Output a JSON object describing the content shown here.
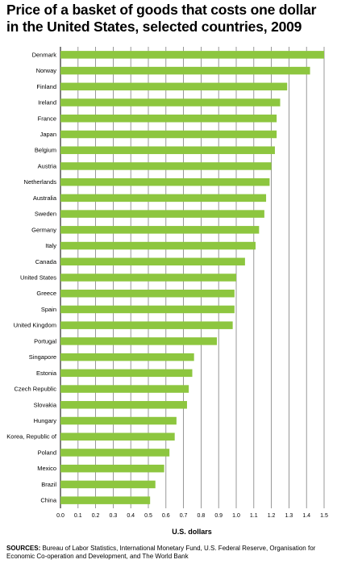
{
  "title": "Price of a basket of goods that costs one dollar in the United States, selected countries, 2009",
  "sources_label": "SOURCES:",
  "sources_text": "Bureau of Labor Statistics, International Monetary Fund, U.S. Federal Reserve, Organisation for Economic Co-operation and Development, and The World Bank",
  "colors": {
    "bar": "#8dc63f",
    "grid": "#7f7f7f",
    "axis": "#000000"
  },
  "chart_data": {
    "type": "bar",
    "orientation": "horizontal",
    "title": "Price of a basket of goods that costs one dollar in the United States, selected countries, 2009",
    "xlabel": "U.S. dollars",
    "ylabel": "",
    "xlim": [
      0,
      1.5
    ],
    "x_ticks": [
      "0.0",
      "0.1",
      "0.2",
      "0.3",
      "0.4",
      "0.5",
      "0.6",
      "0.7",
      "0.8",
      "0.9",
      "1.0",
      "1.1",
      "1.2",
      "1.3",
      "1.4",
      "1.5"
    ],
    "grid": "vertical",
    "categories": [
      "Denmark",
      "Norway",
      "Finland",
      "Ireland",
      "France",
      "Japan",
      "Belgium",
      "Austria",
      "Netherlands",
      "Australia",
      "Sweden",
      "Germany",
      "Italy",
      "Canada",
      "United States",
      "Greece",
      "Spain",
      "United Kingdom",
      "Portugal",
      "Singapore",
      "Estonia",
      "Czech Republic",
      "Slovakia",
      "Hungary",
      "Korea, Republic of",
      "Poland",
      "Mexico",
      "Brazil",
      "China"
    ],
    "values": [
      1.5,
      1.42,
      1.29,
      1.25,
      1.23,
      1.23,
      1.22,
      1.2,
      1.19,
      1.17,
      1.16,
      1.13,
      1.11,
      1.05,
      1.0,
      0.99,
      0.99,
      0.98,
      0.89,
      0.76,
      0.75,
      0.73,
      0.72,
      0.66,
      0.65,
      0.62,
      0.59,
      0.54,
      0.51
    ]
  }
}
